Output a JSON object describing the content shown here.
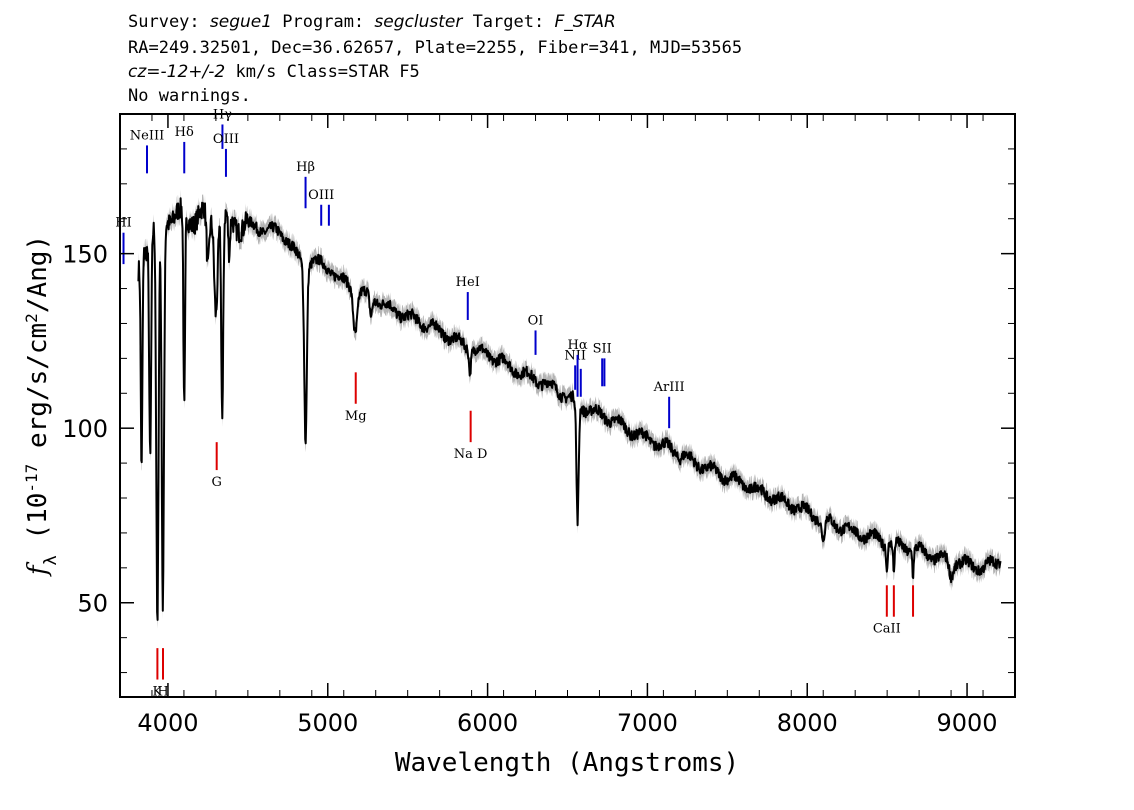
{
  "header": {
    "survey_label": "Survey: ",
    "survey": "segue1",
    "program_label": " Program: ",
    "program": "segcluster",
    "target_label": " Target: ",
    "target": "F_STAR",
    "line2": "RA=249.32501, Dec=36.62657, Plate=2255, Fiber=341, MJD=53565",
    "cz_label": "cz=",
    "cz_value": "-12+/-2",
    "cz_rest": " km/s Class=STAR F5",
    "line4": "No warnings."
  },
  "colors": {
    "spectrum": "#000000",
    "error_band": "#b4b4b4",
    "emission": "#0000cc",
    "absorption": "#dd0000"
  },
  "chart_data": {
    "type": "line",
    "title": "",
    "xlabel": "Wavelength (Angstroms)",
    "ylabel": "f_λ (10^-17 erg/s/cm^2/Ang)",
    "xlim": [
      3700,
      9300
    ],
    "ylim": [
      23,
      190
    ],
    "xticks": [
      4000,
      5000,
      6000,
      7000,
      8000,
      9000
    ],
    "yticks": [
      50,
      100,
      150
    ],
    "grid": false,
    "continuum": [
      [
        3800,
        140
      ],
      [
        3850,
        152
      ],
      [
        3900,
        156
      ],
      [
        3950,
        158
      ],
      [
        4000,
        161
      ],
      [
        4050,
        161
      ],
      [
        4100,
        160
      ],
      [
        4200,
        161
      ],
      [
        4300,
        160
      ],
      [
        4400,
        159
      ],
      [
        4500,
        158
      ],
      [
        4600,
        157
      ],
      [
        4700,
        156
      ],
      [
        4750,
        154
      ],
      [
        4800,
        150
      ],
      [
        4850,
        146
      ],
      [
        4900,
        148
      ],
      [
        5000,
        146
      ],
      [
        5100,
        142
      ],
      [
        5200,
        139
      ],
      [
        5300,
        137
      ],
      [
        5400,
        134
      ],
      [
        5500,
        132
      ],
      [
        5600,
        130
      ],
      [
        5700,
        128
      ],
      [
        5800,
        125
      ],
      [
        5900,
        123
      ],
      [
        6000,
        121
      ],
      [
        6100,
        119
      ],
      [
        6200,
        116
      ],
      [
        6300,
        114
      ],
      [
        6400,
        112
      ],
      [
        6500,
        109
      ],
      [
        6600,
        106
      ],
      [
        6700,
        104
      ],
      [
        6800,
        102
      ],
      [
        6900,
        99
      ],
      [
        7000,
        97
      ],
      [
        7100,
        95
      ],
      [
        7200,
        93
      ],
      [
        7300,
        90
      ],
      [
        7400,
        88
      ],
      [
        7500,
        86
      ],
      [
        7600,
        84
      ],
      [
        7700,
        82
      ],
      [
        7800,
        80
      ],
      [
        7900,
        78
      ],
      [
        8000,
        76
      ],
      [
        8100,
        74
      ],
      [
        8200,
        72
      ],
      [
        8300,
        70
      ],
      [
        8400,
        69
      ],
      [
        8500,
        67
      ],
      [
        8600,
        66
      ],
      [
        8700,
        65
      ],
      [
        8800,
        63
      ],
      [
        8900,
        62
      ],
      [
        9000,
        61
      ],
      [
        9100,
        60
      ],
      [
        9200,
        62
      ]
    ],
    "absorption_dips": [
      [
        3835,
        88,
        5
      ],
      [
        3889,
        92,
        6
      ],
      [
        3934,
        40,
        7
      ],
      [
        3968,
        48,
        7
      ],
      [
        4102,
        103,
        5
      ],
      [
        4250,
        145,
        8
      ],
      [
        4300,
        135,
        10
      ],
      [
        4340,
        102,
        6
      ],
      [
        4383,
        148,
        6
      ],
      [
        4861,
        97,
        8
      ],
      [
        5172,
        128,
        12
      ],
      [
        5270,
        132,
        8
      ],
      [
        5890,
        117,
        6
      ],
      [
        6563,
        73,
        7
      ],
      [
        7200,
        92,
        10
      ],
      [
        8100,
        68,
        10
      ],
      [
        8498,
        60,
        4
      ],
      [
        8542,
        57,
        4
      ],
      [
        8662,
        58,
        4
      ],
      [
        8900,
        58,
        12
      ]
    ],
    "emission_lines": [
      {
        "label": "HI",
        "wavelength": 3722,
        "y0": 147,
        "y1": 156
      },
      {
        "label": "NeIII",
        "wavelength": 3869,
        "y0": 173,
        "y1": 181
      },
      {
        "label": "Hδ",
        "wavelength": 4102,
        "y0": 173,
        "y1": 182
      },
      {
        "label": "Hγ",
        "wavelength": 4341,
        "y0": 180,
        "y1": 187
      },
      {
        "label": "OIII",
        "wavelength": 4363,
        "y0": 172,
        "y1": 180
      },
      {
        "label": "Hβ",
        "wavelength": 4861,
        "y0": 163,
        "y1": 172
      },
      {
        "label": "OIII",
        "wavelength": 4959,
        "y0": 158,
        "y1": 164
      },
      {
        "label": "OIII",
        "wavelength": 5007,
        "y0": 158,
        "y1": 164
      },
      {
        "label": "HeI",
        "wavelength": 5876,
        "y0": 131,
        "y1": 139
      },
      {
        "label": "OI",
        "wavelength": 6300,
        "y0": 121,
        "y1": 128
      },
      {
        "label": "NII",
        "wavelength": 6548,
        "y0": 111,
        "y1": 118
      },
      {
        "label": "Hα",
        "wavelength": 6563,
        "y0": 109,
        "y1": 121
      },
      {
        "label": "NII",
        "wavelength": 6583,
        "y0": 109,
        "y1": 117
      },
      {
        "label": "SII",
        "wavelength": 6717,
        "y0": 112,
        "y1": 120
      },
      {
        "label": "SII",
        "wavelength": 6731,
        "y0": 112,
        "y1": 120
      },
      {
        "label": "ArIII",
        "wavelength": 7136,
        "y0": 100,
        "y1": 109
      }
    ],
    "absorption_lines": [
      {
        "label": "K",
        "wavelength": 3934,
        "y0": 28,
        "y1": 37
      },
      {
        "label": "H",
        "wavelength": 3969,
        "y0": 28,
        "y1": 37
      },
      {
        "label": "G",
        "wavelength": 4305,
        "y0": 88,
        "y1": 96
      },
      {
        "label": "Mg",
        "wavelength": 5175,
        "y0": 107,
        "y1": 116
      },
      {
        "label": "Na D",
        "wavelength": 5894,
        "y0": 96,
        "y1": 105
      },
      {
        "label": "CaII",
        "wavelength": 8498,
        "y0": 46,
        "y1": 55
      },
      {
        "label": "CaII",
        "wavelength": 8542,
        "y0": 46,
        "y1": 55
      },
      {
        "label": "CaII",
        "wavelength": 8662,
        "y0": 46,
        "y1": 55
      }
    ]
  }
}
